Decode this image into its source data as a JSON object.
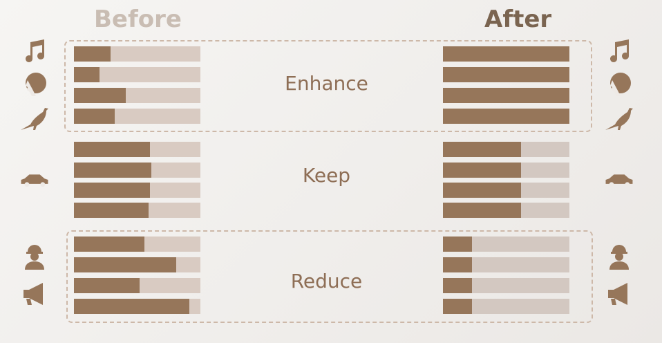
{
  "headers": {
    "before": "Before",
    "after": "After"
  },
  "colors": {
    "fill": "#96765a",
    "track": "#d9cbc2"
  },
  "groups": [
    {
      "label": "Enhance",
      "icons": [
        "music-note-icon",
        "woman-face-icon",
        "bird-icon"
      ],
      "before": [
        0.29,
        0.2,
        0.41,
        0.32
      ],
      "after": [
        1,
        1,
        1,
        1
      ]
    },
    {
      "label": "Keep",
      "icons": [
        "car-icon"
      ],
      "before": [
        0.6,
        0.61,
        0.6,
        0.59
      ],
      "after": [
        0.62,
        0.62,
        0.62,
        0.62
      ]
    },
    {
      "label": "Reduce",
      "icons": [
        "construction-worker-icon",
        "megaphone-icon"
      ],
      "before": [
        0.56,
        0.81,
        0.52,
        0.91
      ],
      "after": [
        0.23,
        0.23,
        0.23,
        0.23
      ]
    }
  ]
}
